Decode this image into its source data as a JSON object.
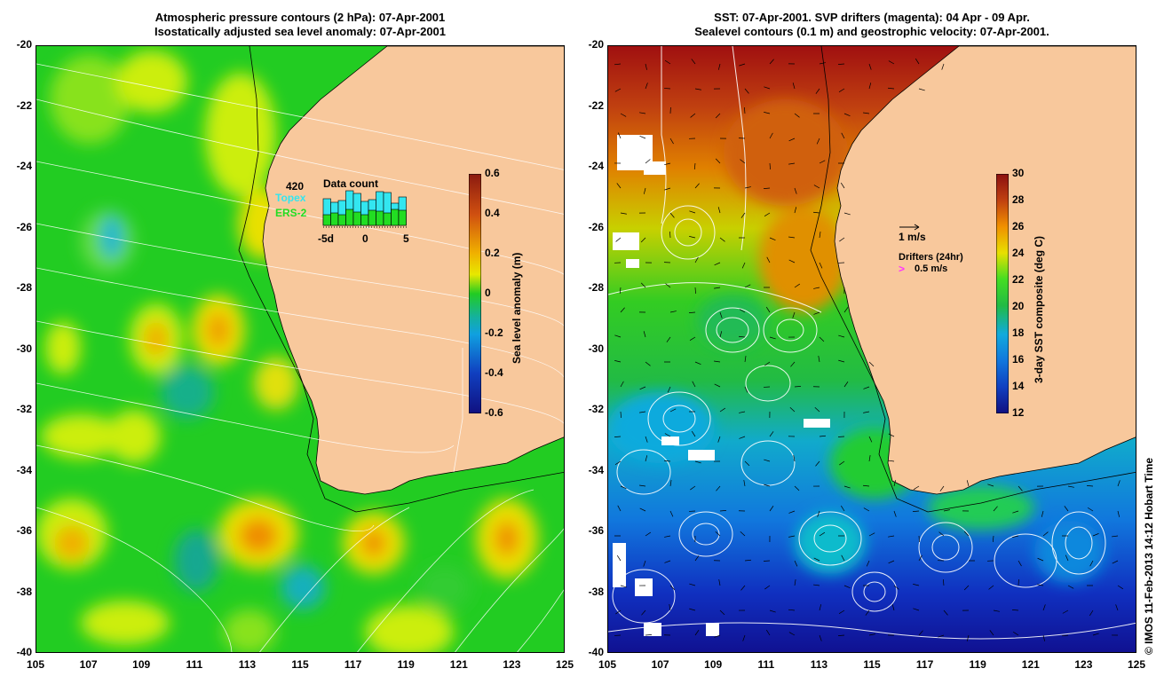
{
  "left_panel": {
    "title_line1": "Atmospheric pressure contours (2 hPa): 07-Apr-2001",
    "title_line2": "Isostatically adjusted sea level anomaly: 07-Apr-2001",
    "colorbar_label": "Sea level anomaly (m)",
    "colorbar_ticks": [
      "0.6",
      "0.4",
      "0.2",
      "0",
      "-0.2",
      "-0.4",
      "-0.6"
    ],
    "inset": {
      "title": "Data count",
      "max_label": "420",
      "series1": "Topex",
      "series2": "ERS-2",
      "x_ticks": [
        "-5d",
        "0",
        "5"
      ],
      "topex_color": "#33e6f0",
      "ers2_color": "#22dd22"
    }
  },
  "right_panel": {
    "title_line1": "SST: 07-Apr-2001. SVP drifters (magenta): 04 Apr - 09 Apr.",
    "title_line2": "Sealevel contours (0.1 m) and geostrophic velocity: 07-Apr-2001.",
    "colorbar_label": "3-day SST composite (deg C)",
    "colorbar_ticks": [
      "30",
      "28",
      "26",
      "24",
      "22",
      "20",
      "18",
      "16",
      "14",
      "12"
    ],
    "velocity_scale_label": "1 m/s",
    "drifters_label": "Drifters (24hr)",
    "drifter_speed_label": "0.5 m/s",
    "drifter_color": "#ff33ff"
  },
  "axes": {
    "y_ticks": [
      "-20",
      "-22",
      "-24",
      "-26",
      "-28",
      "-30",
      "-32",
      "-34",
      "-36",
      "-38",
      "-40"
    ],
    "x_ticks": [
      "105",
      "107",
      "109",
      "111",
      "113",
      "115",
      "117",
      "119",
      "121",
      "123",
      "125"
    ]
  },
  "credit": "© IMOS 11-Feb-2013 14:12 Hobart Time",
  "colors": {
    "land": "#f8c89c",
    "sla_base": "#22cc22",
    "sst_warm": "#a01010",
    "sst_cool": "#1030c0"
  }
}
